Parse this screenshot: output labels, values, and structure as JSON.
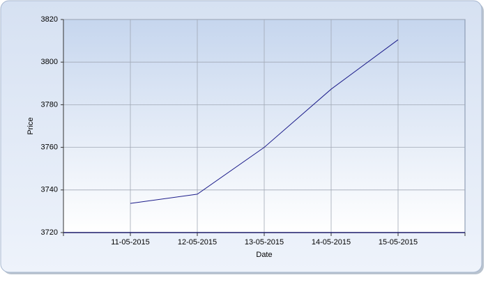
{
  "chart_data": {
    "type": "line",
    "x_label": "Date",
    "y_label": "Price",
    "categories": [
      null,
      "11-05-2015",
      "12-05-2015",
      "13-05-2015",
      "14-05-2015",
      "15-05-2015",
      null
    ],
    "series": [
      {
        "name": "Price",
        "color": "#1c1c8a",
        "values": [
          null,
          3733.7,
          3738,
          3760,
          3787.3,
          3810.5,
          null
        ]
      }
    ],
    "ylim": [
      3720,
      3820
    ],
    "yticks": [
      3720,
      3740,
      3760,
      3780,
      3800,
      3820
    ],
    "grid": true
  }
}
